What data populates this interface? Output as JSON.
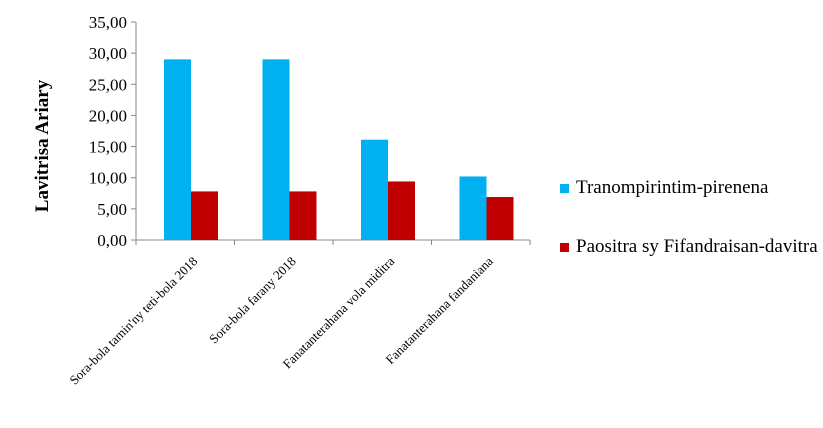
{
  "chart_data": {
    "type": "bar",
    "title": "",
    "xlabel": "",
    "ylabel": "Lavitrisa Ariary",
    "ylim": [
      0,
      35
    ],
    "yticks": [
      "0,00",
      "5,00",
      "10,00",
      "15,00",
      "20,00",
      "25,00",
      "30,00",
      "35,00"
    ],
    "categories": [
      "Sora-bola tamin'ny teti-bola 2018",
      "Sora-bola farany 2018",
      "Fanatanterahana vola miditra",
      "Fanatanterahana fandaniana"
    ],
    "series": [
      {
        "name": "Tranompirintim-pirenena",
        "color": "#00B0F0",
        "values": [
          29.0,
          29.0,
          16.1,
          10.2
        ]
      },
      {
        "name": "Paositra sy Fifandraisan-davitra",
        "color": "#C00000",
        "values": [
          7.8,
          7.8,
          9.4,
          6.9
        ]
      }
    ],
    "grid": false,
    "legend": "right"
  }
}
